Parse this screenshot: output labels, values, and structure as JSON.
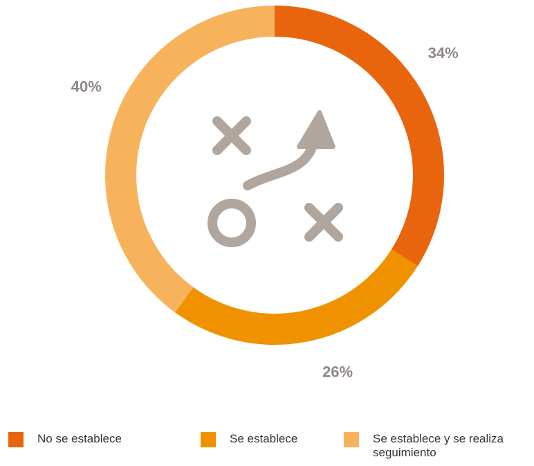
{
  "chart_data": {
    "type": "donut",
    "categories": [
      "No se establece",
      "Se establece",
      "Se establece y se realiza seguimiento"
    ],
    "values": [
      34,
      26,
      40
    ],
    "value_labels": [
      "34%",
      "26%",
      "40%"
    ],
    "colors": [
      "#e8650e",
      "#f09200",
      "#f7b35c"
    ],
    "legend": "bottom"
  }
}
